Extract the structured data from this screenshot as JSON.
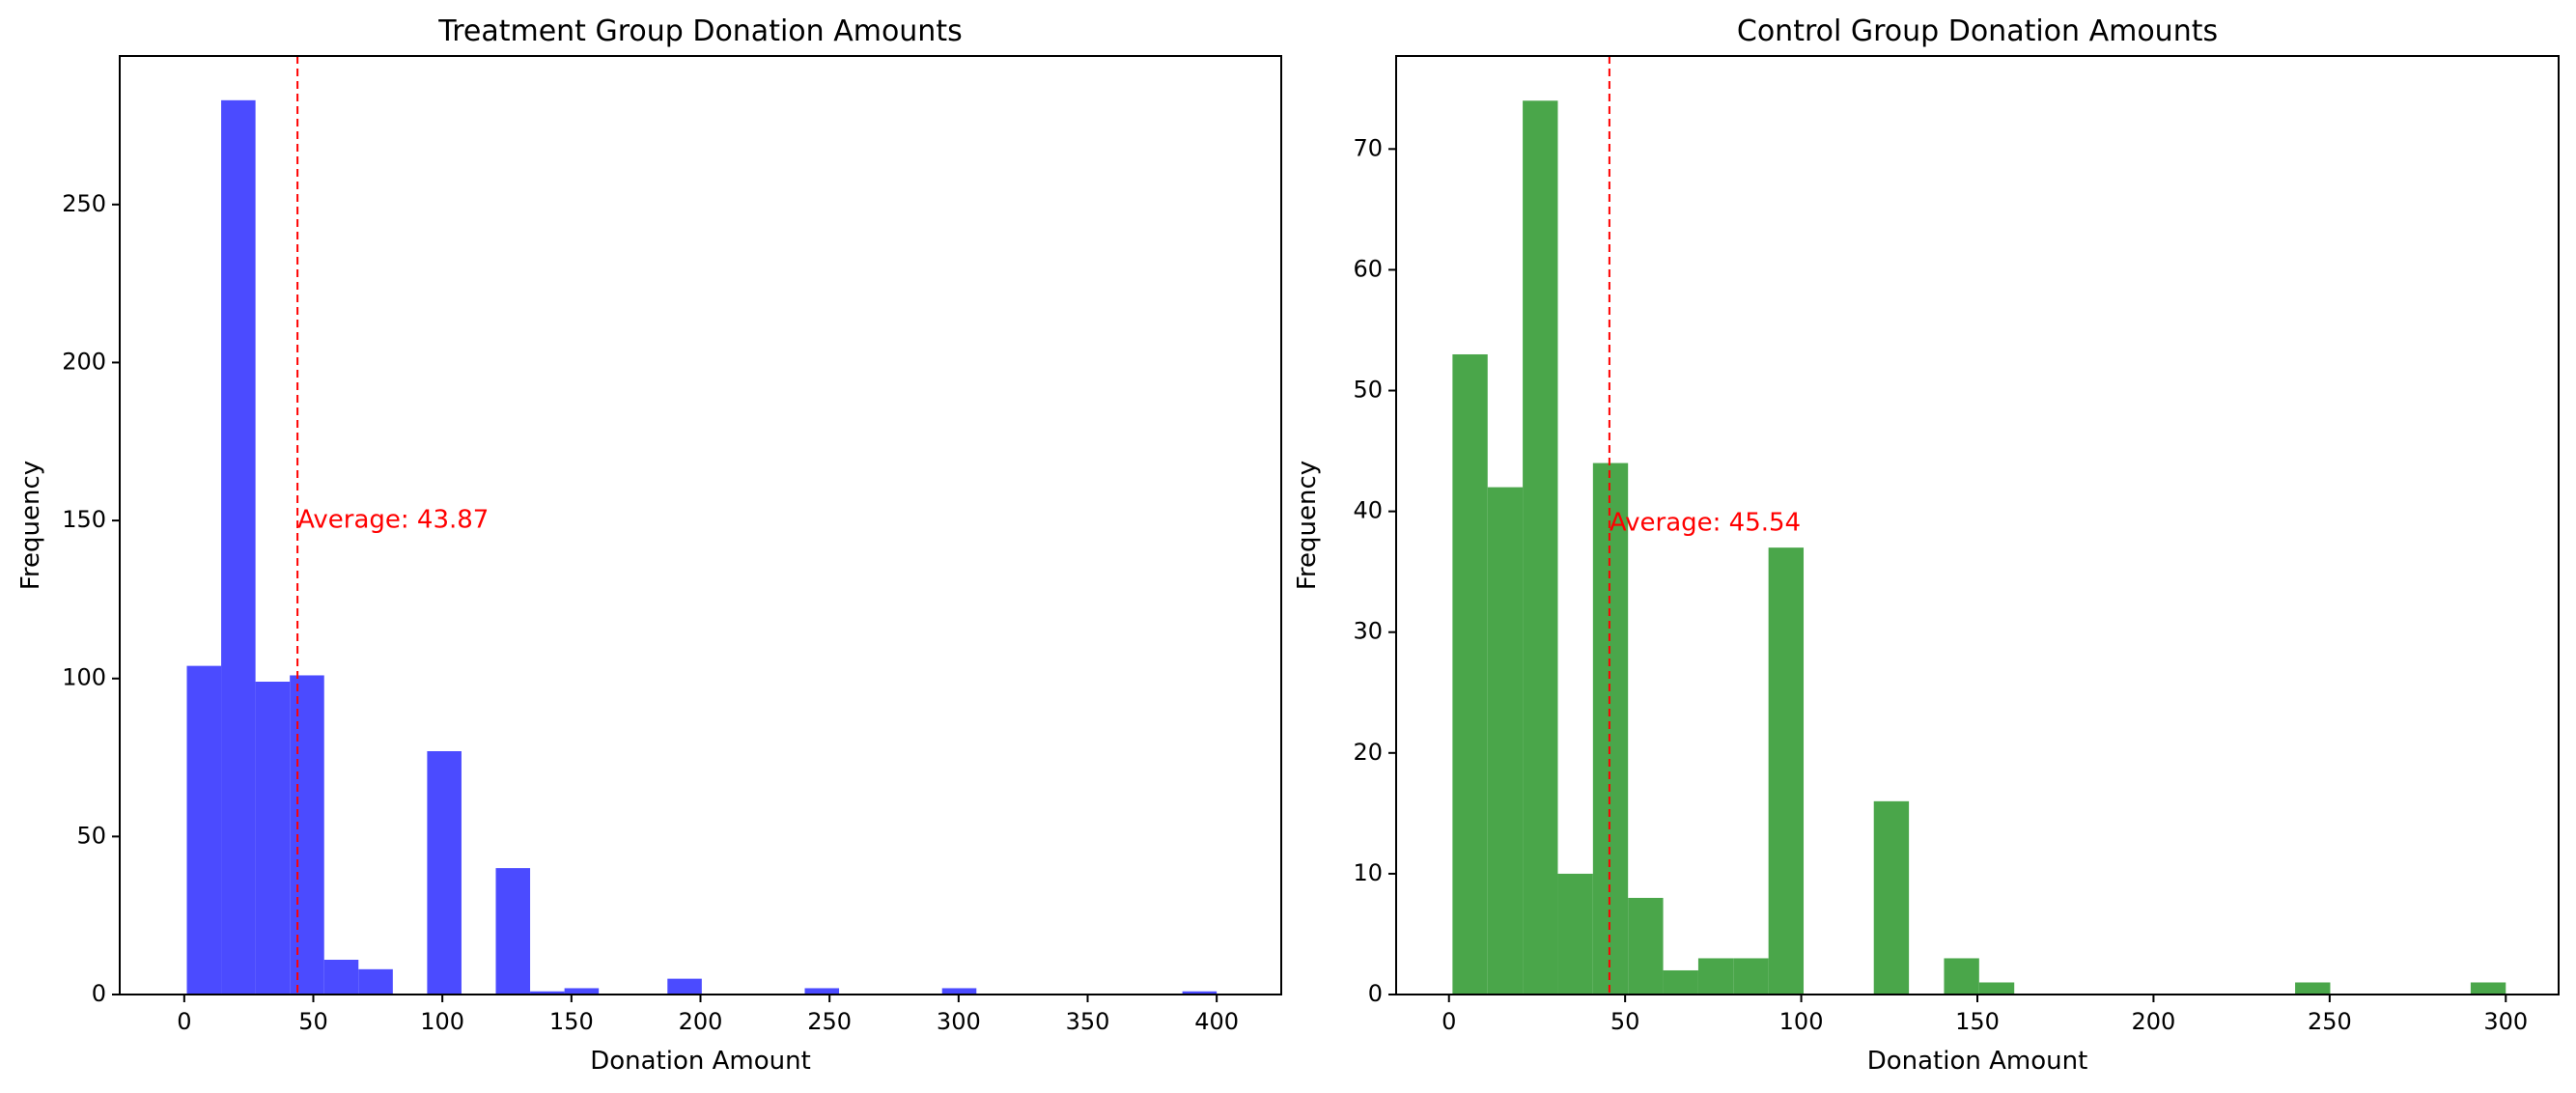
{
  "chart_data": [
    {
      "type": "bar",
      "title": "Treatment Group Donation Amounts",
      "xlabel": "Donation Amount",
      "ylabel": "Frequency",
      "xlim": [
        -25,
        425
      ],
      "ylim": [
        0,
        297
      ],
      "xticks": [
        0,
        50,
        100,
        150,
        200,
        250,
        300,
        350,
        400
      ],
      "yticks": [
        0,
        50,
        100,
        150,
        200,
        250
      ],
      "bin_edges": [
        1,
        14.3,
        27.6,
        40.9,
        54.2,
        67.5,
        80.8,
        94.1,
        107.4,
        120.7,
        134,
        147.3,
        160.6,
        173.9,
        187.2,
        200.5,
        213.8,
        227.1,
        240.4,
        253.7,
        267,
        280.3,
        293.6,
        306.9,
        320.2,
        333.5,
        346.8,
        360.1,
        373.4,
        386.7,
        400
      ],
      "values": [
        104,
        283,
        99,
        101,
        11,
        8,
        0,
        77,
        0,
        40,
        1,
        2,
        0,
        0,
        5,
        0,
        0,
        0,
        2,
        0,
        0,
        0,
        2,
        0,
        0,
        0,
        0,
        0,
        0,
        1
      ],
      "color": "#4b4bff",
      "grid": false,
      "average": 43.87,
      "average_label": "Average: 43.87",
      "average_label_y": 150,
      "average_color": "#ff0000"
    },
    {
      "type": "bar",
      "title": "Control Group Donation Amounts",
      "xlabel": "Donation Amount",
      "ylabel": "Frequency",
      "xlim": [
        -15,
        315
      ],
      "ylim": [
        0,
        77.7
      ],
      "xticks": [
        0,
        50,
        100,
        150,
        200,
        250,
        300
      ],
      "yticks": [
        0,
        10,
        20,
        30,
        40,
        50,
        60,
        70
      ],
      "bin_edges": [
        1,
        10.97,
        20.93,
        30.9,
        40.87,
        50.83,
        60.8,
        70.77,
        80.73,
        90.7,
        100.67,
        110.63,
        120.6,
        130.57,
        140.53,
        150.5,
        160.47,
        170.43,
        180.4,
        190.37,
        200.33,
        210.3,
        220.27,
        230.23,
        240.2,
        250.17,
        260.13,
        270.1,
        280.07,
        290.03,
        300
      ],
      "values": [
        53,
        42,
        74,
        10,
        44,
        8,
        2,
        3,
        3,
        37,
        0,
        0,
        16,
        0,
        3,
        1,
        0,
        0,
        0,
        0,
        0,
        0,
        0,
        0,
        1,
        0,
        0,
        0,
        0,
        1
      ],
      "color": "#4aa64a",
      "grid": false,
      "average": 45.54,
      "average_label": "Average: 45.54",
      "average_label_y": 39,
      "average_color": "#ff0000"
    }
  ]
}
